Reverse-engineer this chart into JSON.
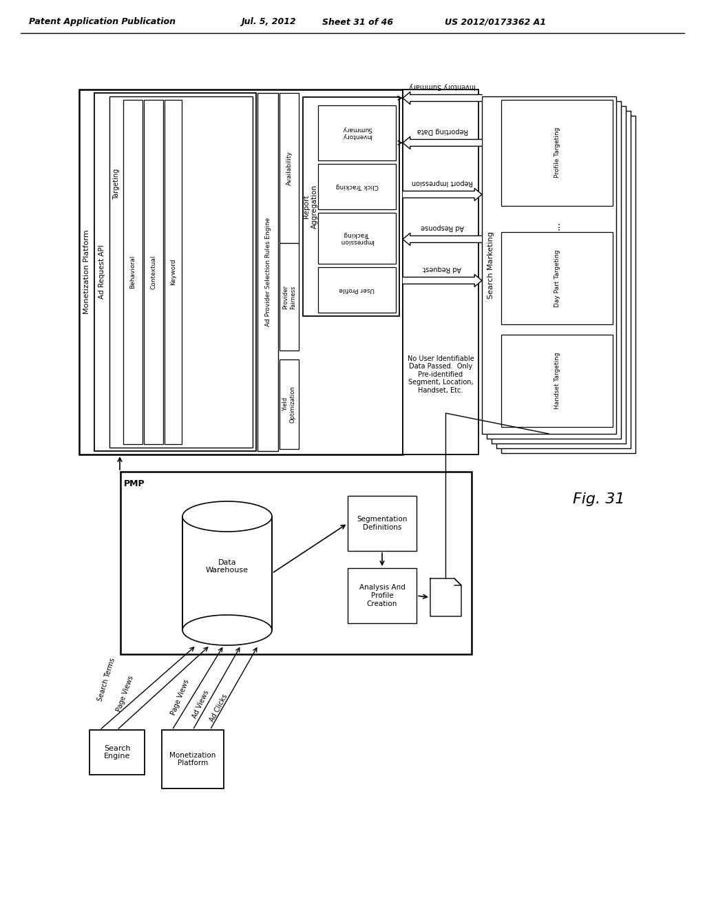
{
  "title_left": "Patent Application Publication",
  "title_mid": "Jul. 5, 2012",
  "title_mid2": "Sheet 31 of 46",
  "title_right": "US 2012/0173362 A1",
  "fig_label": "Fig. 31",
  "bg_color": "#ffffff"
}
